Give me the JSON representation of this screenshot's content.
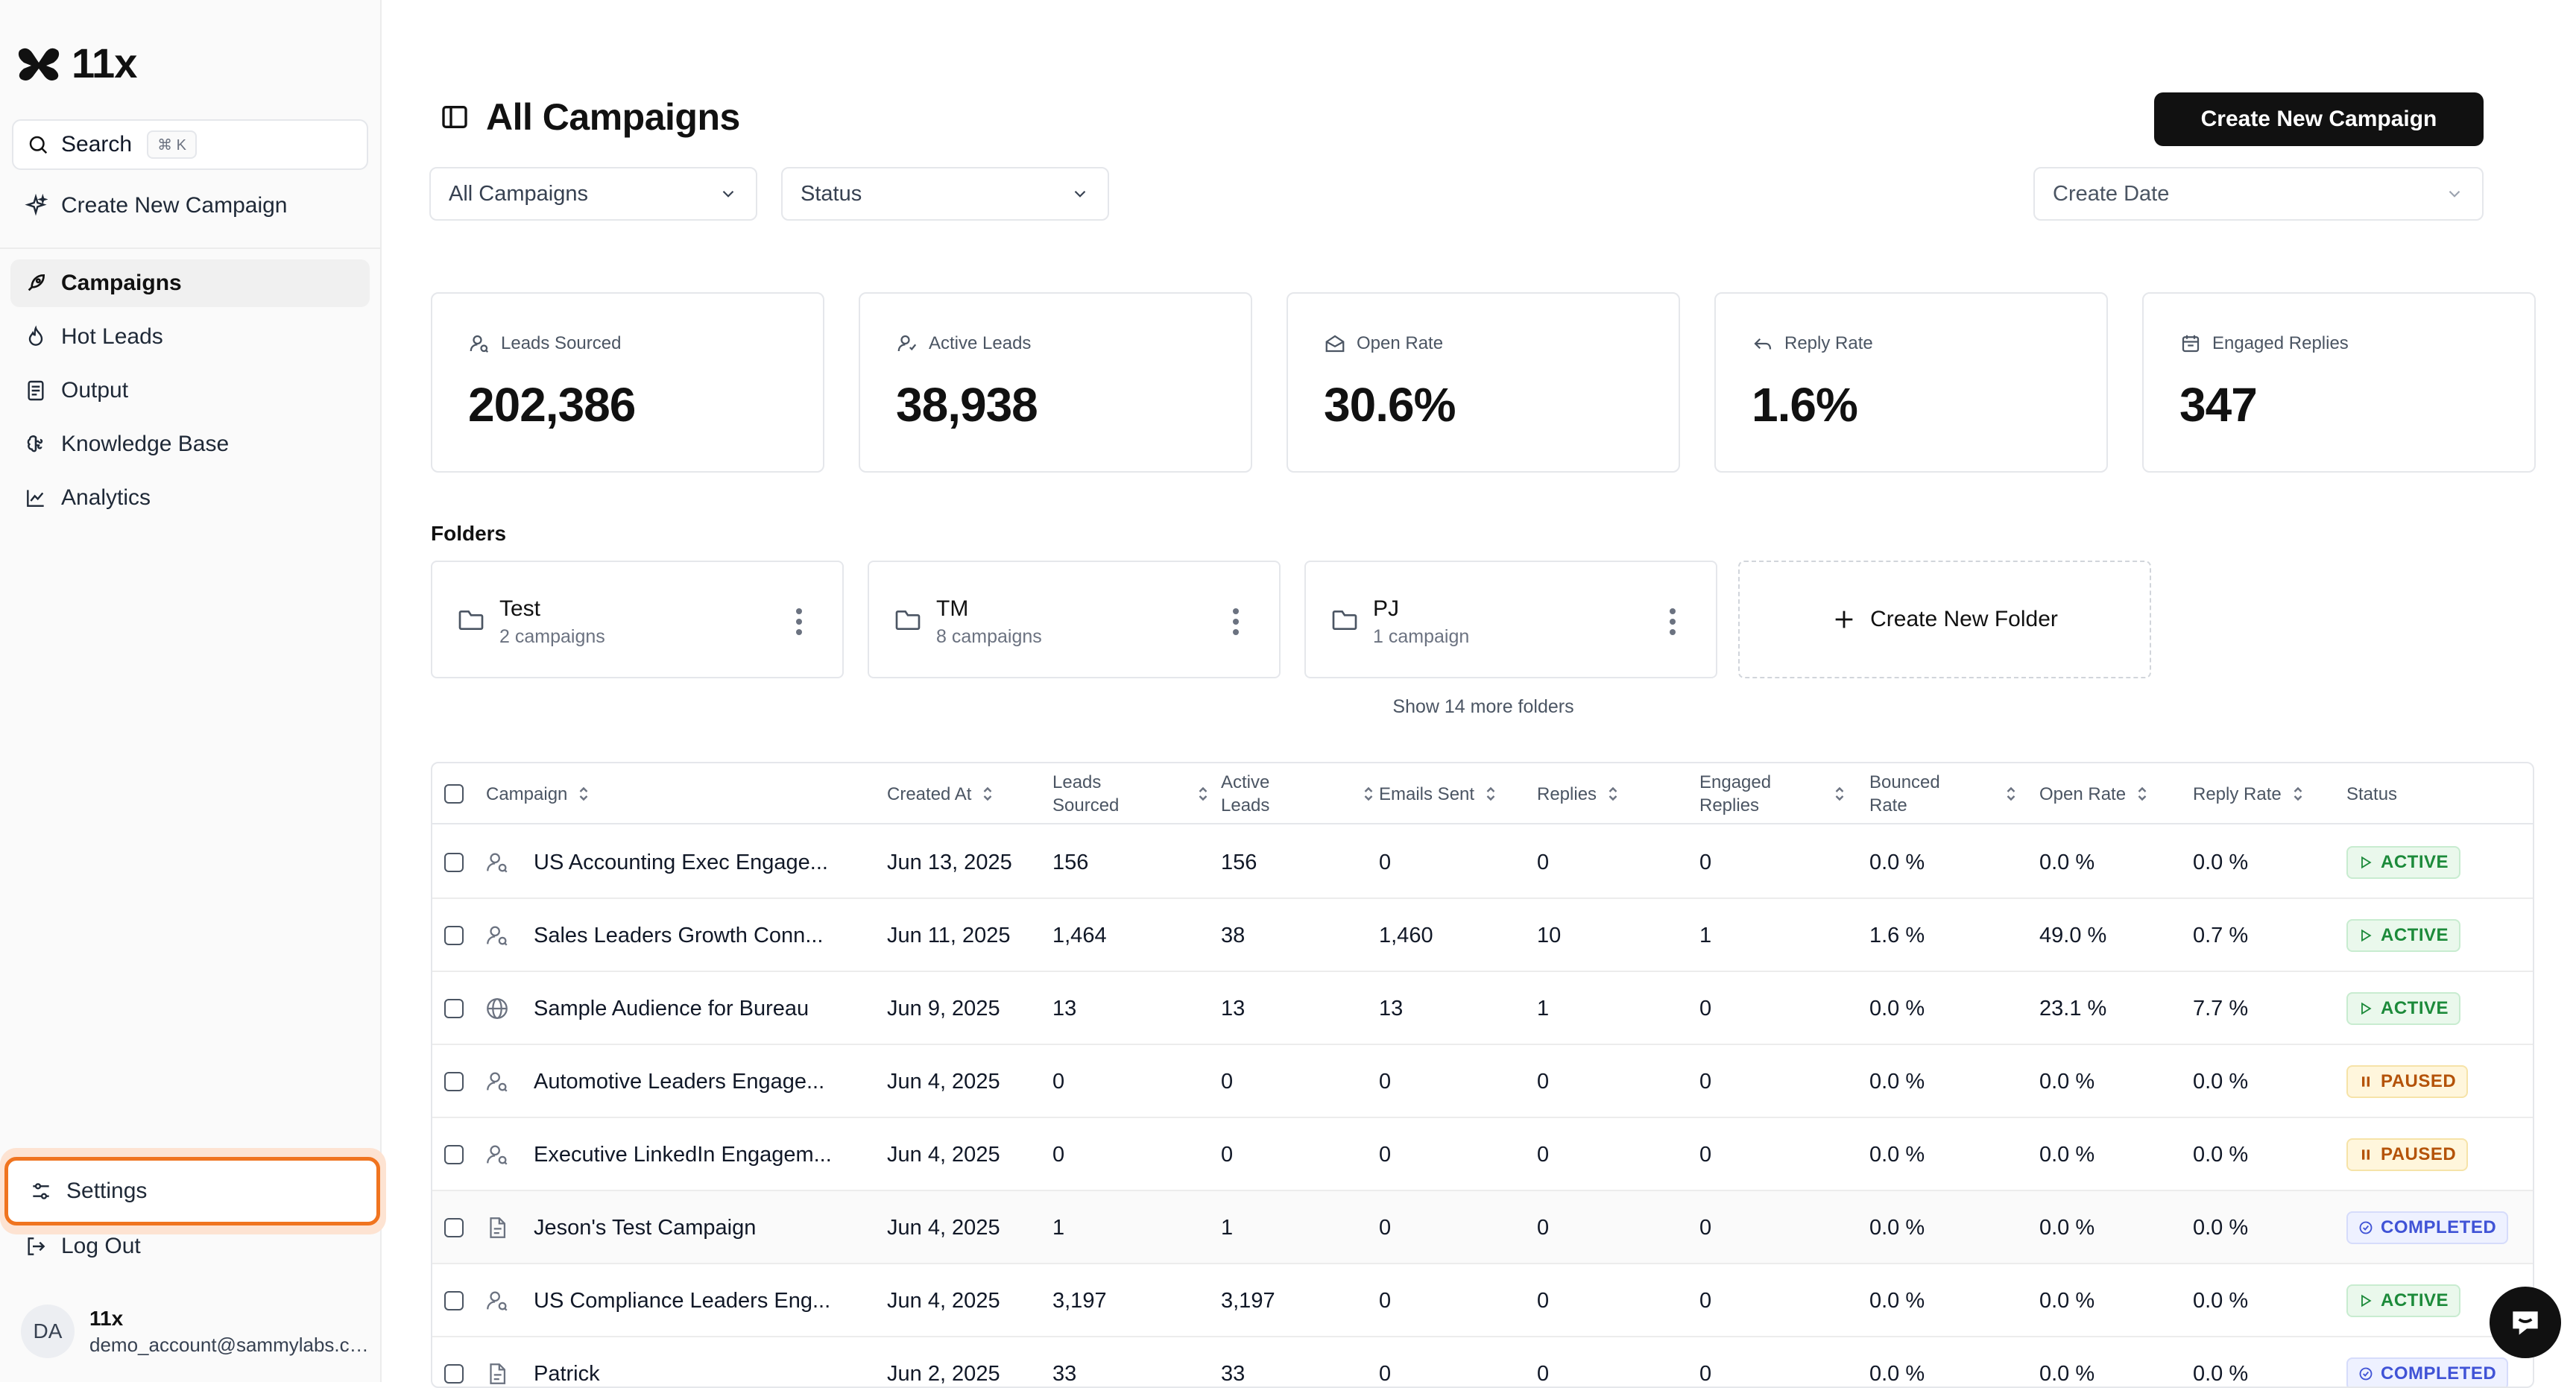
{
  "app": {
    "logo_text": "11x"
  },
  "sidebar": {
    "search_label": "Search",
    "search_shortcut": "⌘ K",
    "create_label": "Create New Campaign",
    "items": [
      {
        "label": "Campaigns",
        "icon": "rocket-icon",
        "active": true
      },
      {
        "label": "Hot Leads",
        "icon": "flame-icon"
      },
      {
        "label": "Output",
        "icon": "document-list-icon"
      },
      {
        "label": "Knowledge Base",
        "icon": "brain-icon"
      },
      {
        "label": "Analytics",
        "icon": "line-chart-icon"
      }
    ],
    "settings_label": "Settings",
    "logout_label": "Log Out",
    "user": {
      "initials": "DA",
      "name": "11x",
      "email": "demo_account@sammylabs.com"
    }
  },
  "header": {
    "title": "All Campaigns",
    "create_button": "Create New Campaign"
  },
  "filters": {
    "campaigns": "All Campaigns",
    "status": "Status",
    "date": "Create Date"
  },
  "stats": [
    {
      "label": "Leads Sourced",
      "value": "202,386",
      "icon": "user-search-icon"
    },
    {
      "label": "Active Leads",
      "value": "38,938",
      "icon": "user-check-icon"
    },
    {
      "label": "Open Rate",
      "value": "30.6%",
      "icon": "mail-open-icon"
    },
    {
      "label": "Reply Rate",
      "value": "1.6%",
      "icon": "reply-icon"
    },
    {
      "label": "Engaged Replies",
      "value": "347",
      "icon": "calendar-icon"
    }
  ],
  "folders": {
    "title": "Folders",
    "items": [
      {
        "name": "Test",
        "count": "2 campaigns"
      },
      {
        "name": "TM",
        "count": "8 campaigns"
      },
      {
        "name": "PJ",
        "count": "1 campaign"
      }
    ],
    "create_label": "Create New Folder",
    "show_more": "Show 14 more folders"
  },
  "table": {
    "columns": {
      "campaign": "Campaign",
      "created_at": "Created At",
      "leads_sourced": "Leads Sourced",
      "active_leads": "Active Leads",
      "emails_sent": "Emails Sent",
      "replies": "Replies",
      "engaged_replies": "Engaged Replies",
      "bounced_rate": "Bounced Rate",
      "open_rate": "Open Rate",
      "reply_rate": "Reply Rate",
      "status": "Status"
    },
    "rows": [
      {
        "name": "US Accounting Exec Engage...",
        "icon": "user-search-icon",
        "created": "Jun 13, 2025",
        "leads": "156",
        "active": "156",
        "emails": "0",
        "replies": "0",
        "engaged": "0",
        "bounced": "0.0 %",
        "open": "0.0 %",
        "reply": "0.0 %",
        "status": "ACTIVE"
      },
      {
        "name": "Sales Leaders Growth Conn...",
        "icon": "user-search-icon",
        "created": "Jun 11, 2025",
        "leads": "1,464",
        "active": "38",
        "emails": "1,460",
        "replies": "10",
        "engaged": "1",
        "bounced": "1.6 %",
        "open": "49.0 %",
        "reply": "0.7 %",
        "status": "ACTIVE"
      },
      {
        "name": "Sample Audience for Bureau",
        "icon": "globe-icon",
        "created": "Jun 9, 2025",
        "leads": "13",
        "active": "13",
        "emails": "13",
        "replies": "1",
        "engaged": "0",
        "bounced": "0.0 %",
        "open": "23.1 %",
        "reply": "7.7 %",
        "status": "ACTIVE"
      },
      {
        "name": "Automotive Leaders Engage...",
        "icon": "user-search-icon",
        "created": "Jun 4, 2025",
        "leads": "0",
        "active": "0",
        "emails": "0",
        "replies": "0",
        "engaged": "0",
        "bounced": "0.0 %",
        "open": "0.0 %",
        "reply": "0.0 %",
        "status": "PAUSED"
      },
      {
        "name": "Executive LinkedIn Engagem...",
        "icon": "user-search-icon",
        "created": "Jun 4, 2025",
        "leads": "0",
        "active": "0",
        "emails": "0",
        "replies": "0",
        "engaged": "0",
        "bounced": "0.0 %",
        "open": "0.0 %",
        "reply": "0.0 %",
        "status": "PAUSED"
      },
      {
        "name": "Jeson's Test Campaign",
        "icon": "document-icon",
        "created": "Jun 4, 2025",
        "leads": "1",
        "active": "1",
        "emails": "0",
        "replies": "0",
        "engaged": "0",
        "bounced": "0.0 %",
        "open": "0.0 %",
        "reply": "0.0 %",
        "status": "COMPLETED"
      },
      {
        "name": "US Compliance Leaders Eng...",
        "icon": "user-search-icon",
        "created": "Jun 4, 2025",
        "leads": "3,197",
        "active": "3,197",
        "emails": "0",
        "replies": "0",
        "engaged": "0",
        "bounced": "0.0 %",
        "open": "0.0 %",
        "reply": "0.0 %",
        "status": "ACTIVE"
      },
      {
        "name": "Patrick",
        "icon": "document-icon",
        "created": "Jun 2, 2025",
        "leads": "33",
        "active": "33",
        "emails": "0",
        "replies": "0",
        "engaged": "0",
        "bounced": "0.0 %",
        "open": "0.0 %",
        "reply": "0.0 %",
        "status": "COMPLETED"
      }
    ]
  },
  "colors": {
    "accent_focus": "#f0741f",
    "active": "#1c8a3a",
    "paused": "#b45309",
    "completed": "#4053d6"
  }
}
